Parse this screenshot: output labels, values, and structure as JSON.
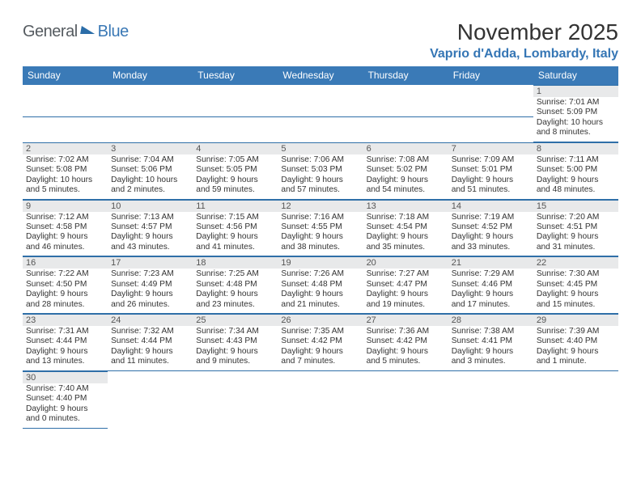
{
  "logo": {
    "part1": "General",
    "part2": "Blue"
  },
  "title": "November 2025",
  "location": "Vaprio d'Adda, Lombardy, Italy",
  "colors": {
    "header_bg": "#3a7ab7",
    "header_fg": "#ffffff",
    "rule": "#2f6fa8",
    "daynum_bg": "#e8e9ea",
    "logo_accent": "#3a78b5",
    "location_color": "#3576b5"
  },
  "weekdays": [
    "Sunday",
    "Monday",
    "Tuesday",
    "Wednesday",
    "Thursday",
    "Friday",
    "Saturday"
  ],
  "weeks": [
    [
      null,
      null,
      null,
      null,
      null,
      null,
      {
        "day": "1",
        "sunrise": "Sunrise: 7:01 AM",
        "sunset": "Sunset: 5:09 PM",
        "daylight1": "Daylight: 10 hours",
        "daylight2": "and 8 minutes."
      }
    ],
    [
      {
        "day": "2",
        "sunrise": "Sunrise: 7:02 AM",
        "sunset": "Sunset: 5:08 PM",
        "daylight1": "Daylight: 10 hours",
        "daylight2": "and 5 minutes."
      },
      {
        "day": "3",
        "sunrise": "Sunrise: 7:04 AM",
        "sunset": "Sunset: 5:06 PM",
        "daylight1": "Daylight: 10 hours",
        "daylight2": "and 2 minutes."
      },
      {
        "day": "4",
        "sunrise": "Sunrise: 7:05 AM",
        "sunset": "Sunset: 5:05 PM",
        "daylight1": "Daylight: 9 hours",
        "daylight2": "and 59 minutes."
      },
      {
        "day": "5",
        "sunrise": "Sunrise: 7:06 AM",
        "sunset": "Sunset: 5:03 PM",
        "daylight1": "Daylight: 9 hours",
        "daylight2": "and 57 minutes."
      },
      {
        "day": "6",
        "sunrise": "Sunrise: 7:08 AM",
        "sunset": "Sunset: 5:02 PM",
        "daylight1": "Daylight: 9 hours",
        "daylight2": "and 54 minutes."
      },
      {
        "day": "7",
        "sunrise": "Sunrise: 7:09 AM",
        "sunset": "Sunset: 5:01 PM",
        "daylight1": "Daylight: 9 hours",
        "daylight2": "and 51 minutes."
      },
      {
        "day": "8",
        "sunrise": "Sunrise: 7:11 AM",
        "sunset": "Sunset: 5:00 PM",
        "daylight1": "Daylight: 9 hours",
        "daylight2": "and 48 minutes."
      }
    ],
    [
      {
        "day": "9",
        "sunrise": "Sunrise: 7:12 AM",
        "sunset": "Sunset: 4:58 PM",
        "daylight1": "Daylight: 9 hours",
        "daylight2": "and 46 minutes."
      },
      {
        "day": "10",
        "sunrise": "Sunrise: 7:13 AM",
        "sunset": "Sunset: 4:57 PM",
        "daylight1": "Daylight: 9 hours",
        "daylight2": "and 43 minutes."
      },
      {
        "day": "11",
        "sunrise": "Sunrise: 7:15 AM",
        "sunset": "Sunset: 4:56 PM",
        "daylight1": "Daylight: 9 hours",
        "daylight2": "and 41 minutes."
      },
      {
        "day": "12",
        "sunrise": "Sunrise: 7:16 AM",
        "sunset": "Sunset: 4:55 PM",
        "daylight1": "Daylight: 9 hours",
        "daylight2": "and 38 minutes."
      },
      {
        "day": "13",
        "sunrise": "Sunrise: 7:18 AM",
        "sunset": "Sunset: 4:54 PM",
        "daylight1": "Daylight: 9 hours",
        "daylight2": "and 35 minutes."
      },
      {
        "day": "14",
        "sunrise": "Sunrise: 7:19 AM",
        "sunset": "Sunset: 4:52 PM",
        "daylight1": "Daylight: 9 hours",
        "daylight2": "and 33 minutes."
      },
      {
        "day": "15",
        "sunrise": "Sunrise: 7:20 AM",
        "sunset": "Sunset: 4:51 PM",
        "daylight1": "Daylight: 9 hours",
        "daylight2": "and 31 minutes."
      }
    ],
    [
      {
        "day": "16",
        "sunrise": "Sunrise: 7:22 AM",
        "sunset": "Sunset: 4:50 PM",
        "daylight1": "Daylight: 9 hours",
        "daylight2": "and 28 minutes."
      },
      {
        "day": "17",
        "sunrise": "Sunrise: 7:23 AM",
        "sunset": "Sunset: 4:49 PM",
        "daylight1": "Daylight: 9 hours",
        "daylight2": "and 26 minutes."
      },
      {
        "day": "18",
        "sunrise": "Sunrise: 7:25 AM",
        "sunset": "Sunset: 4:48 PM",
        "daylight1": "Daylight: 9 hours",
        "daylight2": "and 23 minutes."
      },
      {
        "day": "19",
        "sunrise": "Sunrise: 7:26 AM",
        "sunset": "Sunset: 4:48 PM",
        "daylight1": "Daylight: 9 hours",
        "daylight2": "and 21 minutes."
      },
      {
        "day": "20",
        "sunrise": "Sunrise: 7:27 AM",
        "sunset": "Sunset: 4:47 PM",
        "daylight1": "Daylight: 9 hours",
        "daylight2": "and 19 minutes."
      },
      {
        "day": "21",
        "sunrise": "Sunrise: 7:29 AM",
        "sunset": "Sunset: 4:46 PM",
        "daylight1": "Daylight: 9 hours",
        "daylight2": "and 17 minutes."
      },
      {
        "day": "22",
        "sunrise": "Sunrise: 7:30 AM",
        "sunset": "Sunset: 4:45 PM",
        "daylight1": "Daylight: 9 hours",
        "daylight2": "and 15 minutes."
      }
    ],
    [
      {
        "day": "23",
        "sunrise": "Sunrise: 7:31 AM",
        "sunset": "Sunset: 4:44 PM",
        "daylight1": "Daylight: 9 hours",
        "daylight2": "and 13 minutes."
      },
      {
        "day": "24",
        "sunrise": "Sunrise: 7:32 AM",
        "sunset": "Sunset: 4:44 PM",
        "daylight1": "Daylight: 9 hours",
        "daylight2": "and 11 minutes."
      },
      {
        "day": "25",
        "sunrise": "Sunrise: 7:34 AM",
        "sunset": "Sunset: 4:43 PM",
        "daylight1": "Daylight: 9 hours",
        "daylight2": "and 9 minutes."
      },
      {
        "day": "26",
        "sunrise": "Sunrise: 7:35 AM",
        "sunset": "Sunset: 4:42 PM",
        "daylight1": "Daylight: 9 hours",
        "daylight2": "and 7 minutes."
      },
      {
        "day": "27",
        "sunrise": "Sunrise: 7:36 AM",
        "sunset": "Sunset: 4:42 PM",
        "daylight1": "Daylight: 9 hours",
        "daylight2": "and 5 minutes."
      },
      {
        "day": "28",
        "sunrise": "Sunrise: 7:38 AM",
        "sunset": "Sunset: 4:41 PM",
        "daylight1": "Daylight: 9 hours",
        "daylight2": "and 3 minutes."
      },
      {
        "day": "29",
        "sunrise": "Sunrise: 7:39 AM",
        "sunset": "Sunset: 4:40 PM",
        "daylight1": "Daylight: 9 hours",
        "daylight2": "and 1 minute."
      }
    ],
    [
      {
        "day": "30",
        "sunrise": "Sunrise: 7:40 AM",
        "sunset": "Sunset: 4:40 PM",
        "daylight1": "Daylight: 9 hours",
        "daylight2": "and 0 minutes."
      },
      null,
      null,
      null,
      null,
      null,
      null
    ]
  ]
}
